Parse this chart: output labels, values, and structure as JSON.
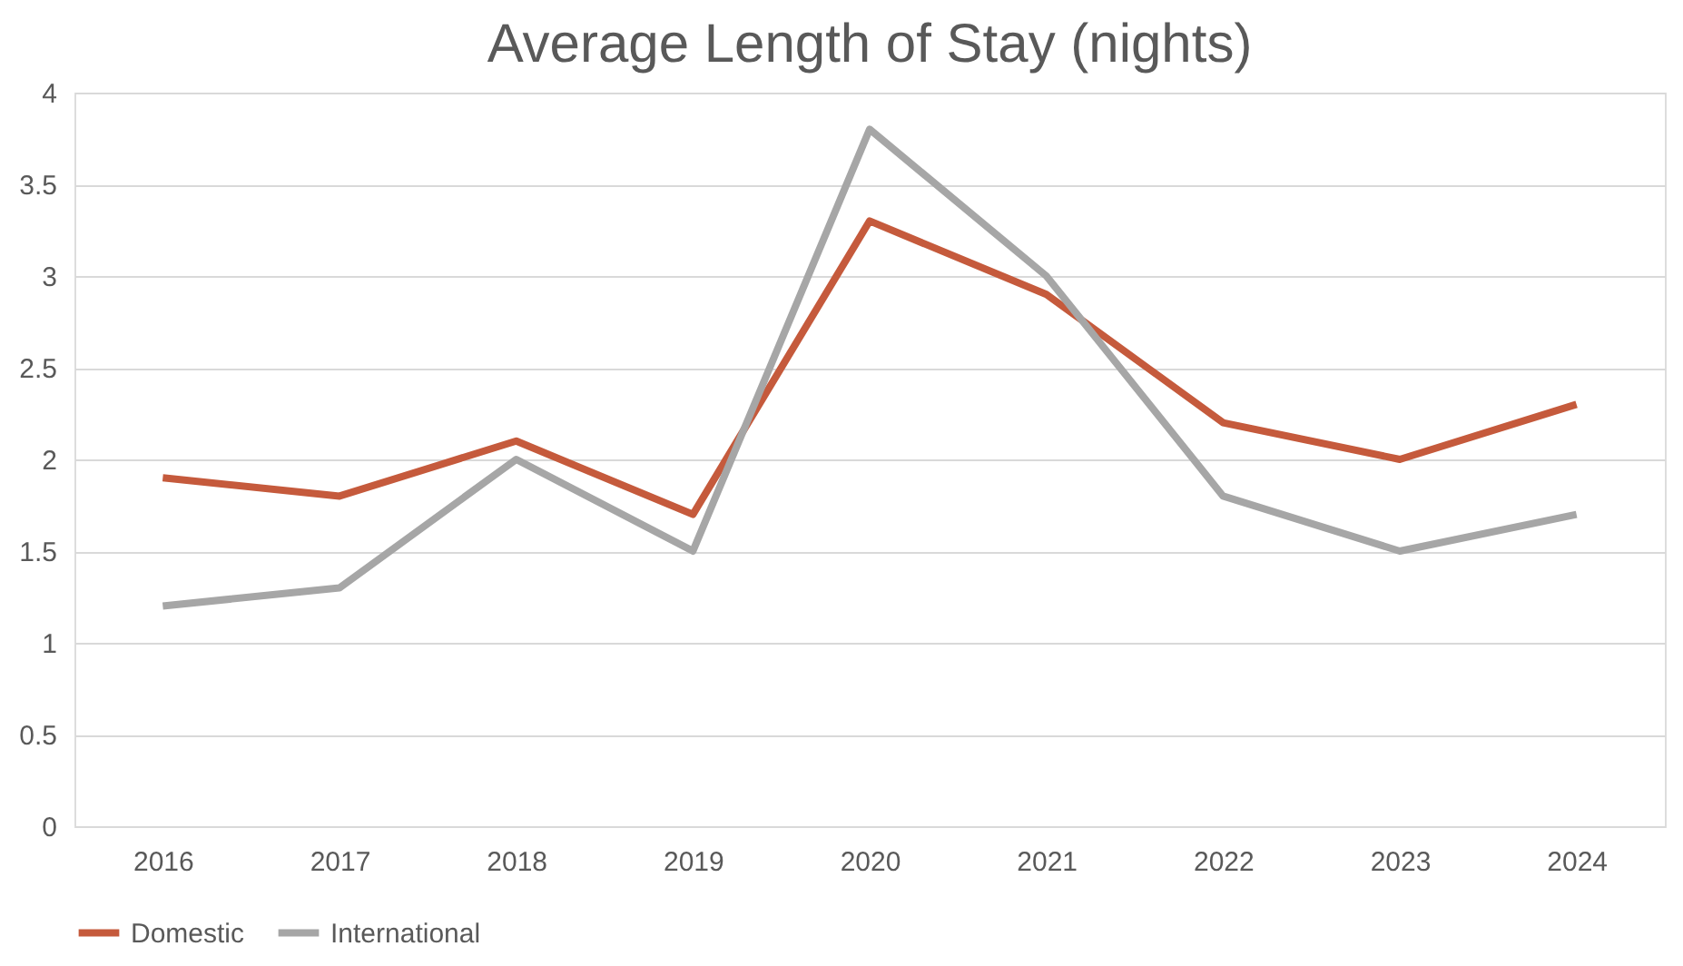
{
  "chart_data": {
    "type": "line",
    "title": "Average Length of Stay (nights)",
    "categories": [
      "2016",
      "2017",
      "2018",
      "2019",
      "2020",
      "2021",
      "2022",
      "2023",
      "2024"
    ],
    "series": [
      {
        "name": "Domestic",
        "color": "#c55a3c",
        "values": [
          1.9,
          1.8,
          2.1,
          1.7,
          3.3,
          2.9,
          2.2,
          2.0,
          2.3
        ]
      },
      {
        "name": "International",
        "color": "#a6a6a6",
        "values": [
          1.2,
          1.3,
          2.0,
          1.5,
          3.8,
          3.0,
          1.8,
          1.5,
          1.7
        ]
      }
    ],
    "ylim": [
      0,
      4
    ],
    "yticks": [
      0,
      0.5,
      1,
      1.5,
      2,
      2.5,
      3,
      3.5,
      4
    ],
    "grid": "y",
    "legend": "bottom",
    "marker": "none",
    "line_style": "solid"
  }
}
